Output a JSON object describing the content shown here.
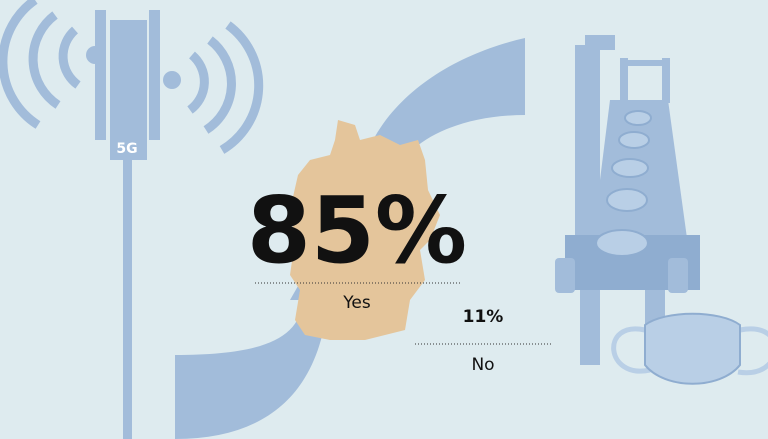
{
  "antenna": {
    "label": "5G"
  },
  "results": [
    {
      "value": "85%",
      "label": "Yes"
    },
    {
      "value": "11%",
      "label": "No"
    }
  ]
}
